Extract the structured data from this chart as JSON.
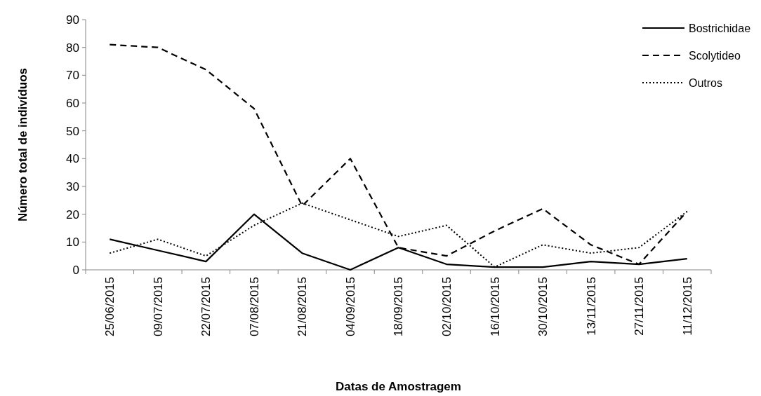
{
  "chart_data": {
    "type": "line",
    "xlabel": "Datas de Amostragem",
    "ylabel": "Número total de indivíduos",
    "categories": [
      "25/06/2015",
      "09/07/2015",
      "22/07/2015",
      "07/08/2015",
      "21/08/2015",
      "04/09/2015",
      "18/09/2015",
      "02/10/2015",
      "16/10/2015",
      "30/10/2015",
      "13/11/2015",
      "27/11/2015",
      "11/12/2015"
    ],
    "ylim": [
      0,
      90
    ],
    "yticks": [
      0,
      10,
      20,
      30,
      40,
      50,
      60,
      70,
      80,
      90
    ],
    "grid": false,
    "legend": "top right",
    "marker": "none",
    "series": [
      {
        "name": "Bostrichidae",
        "color": "#000000",
        "line_style": "solid",
        "values": [
          11,
          7,
          3,
          20,
          6,
          0,
          8,
          2,
          1,
          1,
          3,
          2,
          4
        ]
      },
      {
        "name": "Scolytideo",
        "color": "#000000",
        "line_style": "dashed",
        "values": [
          81,
          80,
          72,
          58,
          23,
          40,
          8,
          5,
          14,
          22,
          9,
          2,
          21
        ]
      },
      {
        "name": "Outros",
        "color": "#000000",
        "line_style": "dotted",
        "values": [
          6,
          11,
          5,
          16,
          24,
          18,
          12,
          16,
          1,
          9,
          6,
          8,
          21
        ]
      }
    ]
  }
}
